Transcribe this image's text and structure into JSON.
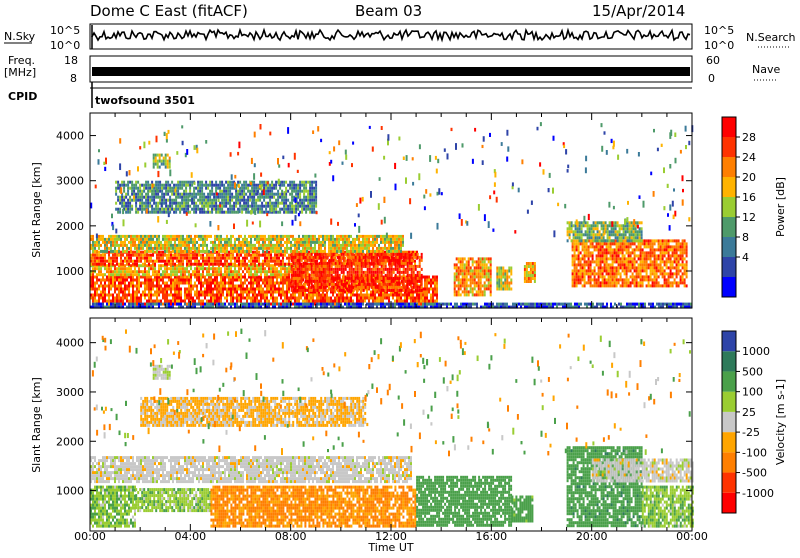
{
  "header": {
    "station": "Dome C East (fitACF)",
    "beam": "Beam 03",
    "date": "15/Apr/2014"
  },
  "top_strips": {
    "nsky_label": "N.Sky",
    "nsky_ticks": [
      "10^5",
      "10^0"
    ],
    "nsearch_label": "N.Search",
    "nsearch_ticks": [
      "10^5",
      "10^0"
    ],
    "freq_label_1": "Freq.",
    "freq_label_2": "[MHz]",
    "freq_ticks": [
      "18",
      "8"
    ],
    "nave_label": "Nave",
    "nave_ticks": [
      "60",
      "0"
    ],
    "cpid_label": "CPID",
    "cpid_value": "twofsound 3501"
  },
  "chart_data": [
    {
      "type": "heatmap",
      "panel": "power",
      "ylabel": "Slant Range [km]",
      "xlabel": "",
      "x_range_hours": [
        0,
        24
      ],
      "ylim": [
        180,
        4500
      ],
      "y_ticks": [
        "1000",
        "2000",
        "3000",
        "4000"
      ],
      "x_ticks": [
        "00:00",
        "04:00",
        "08:00",
        "12:00",
        "16:00",
        "20:00",
        "00:00"
      ],
      "colorbar": {
        "label": "Power [dB]",
        "ticks": [
          "28",
          "24",
          "20",
          "16",
          "12",
          "8",
          "4"
        ],
        "colors": [
          "#0000ff",
          "#2e44a8",
          "#3b7a99",
          "#4e9a6a",
          "#9acd32",
          "#ffb300",
          "#ff7f00",
          "#ff3300",
          "#ff0000"
        ]
      },
      "regions": [
        {
          "t0": 0.0,
          "t1": 13.8,
          "r0": 300,
          "r1": 900,
          "value": 26
        },
        {
          "t0": 0.0,
          "t1": 9.5,
          "r0": 900,
          "r1": 1150,
          "value": 20
        },
        {
          "t0": 0.0,
          "t1": 13.0,
          "r0": 1150,
          "r1": 1450,
          "value": 26
        },
        {
          "t0": 0.0,
          "t1": 12.5,
          "r0": 1450,
          "r1": 1800,
          "value": 18
        },
        {
          "t0": 8.0,
          "t1": 13.2,
          "r0": 600,
          "r1": 1400,
          "value": 28
        },
        {
          "t0": 14.5,
          "t1": 16.0,
          "r0": 500,
          "r1": 1300,
          "value": 22
        },
        {
          "t0": 16.2,
          "t1": 16.8,
          "r0": 600,
          "r1": 1100,
          "value": 18
        },
        {
          "t0": 17.3,
          "t1": 17.7,
          "r0": 800,
          "r1": 1200,
          "value": 20
        },
        {
          "t0": 19.2,
          "t1": 23.8,
          "r0": 700,
          "r1": 1700,
          "value": 24
        },
        {
          "t0": 19.0,
          "t1": 22.0,
          "r0": 1700,
          "r1": 2100,
          "value": 14
        },
        {
          "t0": 1.0,
          "t1": 9.0,
          "r0": 2300,
          "r1": 3000,
          "value": 10
        },
        {
          "t0": 2.5,
          "t1": 3.2,
          "r0": 3300,
          "r1": 3600,
          "value": 16
        },
        {
          "t0": 0.0,
          "t1": 24.0,
          "r0": 180,
          "r1": 300,
          "value": 6
        }
      ]
    },
    {
      "type": "heatmap",
      "panel": "velocity",
      "ylabel": "Slant Range [km]",
      "xlabel": "Time UT",
      "x_range_hours": [
        0,
        24
      ],
      "ylim": [
        180,
        4500
      ],
      "y_ticks": [
        "1000",
        "2000",
        "3000",
        "4000"
      ],
      "x_ticks": [
        "00:00",
        "04:00",
        "08:00",
        "12:00",
        "16:00",
        "20:00",
        "00:00"
      ],
      "colorbar": {
        "label": "Velocity [m s-1]",
        "ticks": [
          "1000",
          "500",
          "100",
          "25",
          "-25",
          "-100",
          "-500",
          "-1000"
        ],
        "colors": [
          "#ff0000",
          "#ff3300",
          "#ff7f00",
          "#ffa500",
          "#c8c8c8",
          "#9acd32",
          "#4aa04a",
          "#2e7a5a",
          "#2e44a8"
        ]
      },
      "regions": [
        {
          "t0": 0.0,
          "t1": 12.8,
          "r0": 1200,
          "r1": 1700,
          "value": 0
        },
        {
          "t0": 0.0,
          "t1": 1.8,
          "r0": 300,
          "r1": 1100,
          "value": 80
        },
        {
          "t0": 1.8,
          "t1": 4.8,
          "r0": 600,
          "r1": 1050,
          "value": 70
        },
        {
          "t0": 4.8,
          "t1": 13.0,
          "r0": 300,
          "r1": 1100,
          "value": -120
        },
        {
          "t0": 13.0,
          "t1": 16.8,
          "r0": 300,
          "r1": 1300,
          "value": 300
        },
        {
          "t0": 16.8,
          "t1": 17.6,
          "r0": 400,
          "r1": 900,
          "value": 200
        },
        {
          "t0": 19.0,
          "t1": 22.0,
          "r0": 300,
          "r1": 1900,
          "value": 350
        },
        {
          "t0": 20.0,
          "t1": 24.0,
          "r0": 1200,
          "r1": 1650,
          "value": 0
        },
        {
          "t0": 22.0,
          "t1": 24.0,
          "r0": 300,
          "r1": 1100,
          "value": 80
        },
        {
          "t0": 2.0,
          "t1": 11.0,
          "r0": 2300,
          "r1": 2900,
          "value": -40
        },
        {
          "t0": 2.5,
          "t1": 3.2,
          "r0": 3300,
          "r1": 3550,
          "value": 10
        }
      ]
    }
  ]
}
